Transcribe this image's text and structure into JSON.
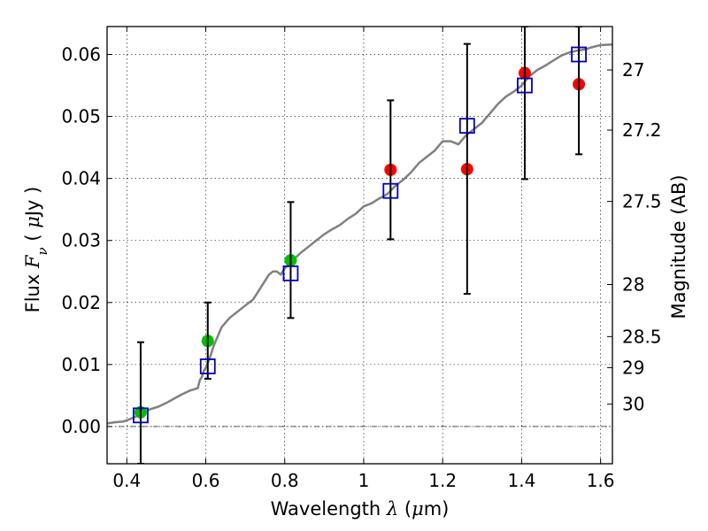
{
  "chart_data": {
    "type": "scatter",
    "xlabel": "Wavelength λ (μm)",
    "ylabel": "Flux F_ν ( μJy )",
    "ylabel_right": "Magnitude (AB)",
    "xlim": [
      0.35,
      1.63
    ],
    "ylim": [
      -0.006,
      0.0645
    ],
    "grid": true,
    "x_ticks": [
      0.4,
      0.6,
      0.8,
      1.0,
      1.2,
      1.4,
      1.6
    ],
    "x_tick_labels": [
      "0.4",
      "0.6",
      "0.8",
      "1",
      "1.2",
      "1.4",
      "1.6"
    ],
    "y_ticks": [
      0.0,
      0.01,
      0.02,
      0.03,
      0.04,
      0.05,
      0.06
    ],
    "y_tick_labels": [
      "0.00",
      "0.01",
      "0.02",
      "0.03",
      "0.04",
      "0.05",
      "0.06"
    ],
    "right_ticks": [
      {
        "label": "27",
        "flux": 0.0575
      },
      {
        "label": "27.2",
        "flux": 0.0478
      },
      {
        "label": "27.5",
        "flux": 0.0363
      },
      {
        "label": "28",
        "flux": 0.0229
      },
      {
        "label": "28.5",
        "flux": 0.0145
      },
      {
        "label": "29",
        "flux": 0.0095
      },
      {
        "label": "30",
        "flux": 0.0036
      }
    ],
    "series": [
      {
        "kind": "line",
        "color": "#808080",
        "x": [
          0.35,
          0.37,
          0.39,
          0.4,
          0.42,
          0.44,
          0.46,
          0.48,
          0.5,
          0.52,
          0.54,
          0.56,
          0.57,
          0.58,
          0.585,
          0.59,
          0.595,
          0.6,
          0.61,
          0.62,
          0.63,
          0.64,
          0.66,
          0.68,
          0.7,
          0.72,
          0.74,
          0.76,
          0.77,
          0.78,
          0.79,
          0.8,
          0.82,
          0.84,
          0.86,
          0.88,
          0.9,
          0.92,
          0.94,
          0.96,
          0.98,
          1.0,
          1.02,
          1.04,
          1.06,
          1.08,
          1.1,
          1.12,
          1.14,
          1.16,
          1.18,
          1.2,
          1.22,
          1.24,
          1.26,
          1.28,
          1.3,
          1.32,
          1.34,
          1.36,
          1.38,
          1.4,
          1.42,
          1.44,
          1.46,
          1.48,
          1.5,
          1.52,
          1.54,
          1.56,
          1.58,
          1.6,
          1.63
        ],
        "y": [
          0.0005,
          0.0007,
          0.0008,
          0.001,
          0.0015,
          0.0022,
          0.0028,
          0.0032,
          0.0038,
          0.0045,
          0.0052,
          0.0058,
          0.006,
          0.0062,
          0.0075,
          0.008,
          0.009,
          0.0095,
          0.011,
          0.013,
          0.0145,
          0.016,
          0.0175,
          0.0185,
          0.0195,
          0.0205,
          0.0225,
          0.0245,
          0.025,
          0.025,
          0.0245,
          0.0255,
          0.0268,
          0.028,
          0.029,
          0.03,
          0.031,
          0.0318,
          0.0325,
          0.0335,
          0.0343,
          0.0355,
          0.036,
          0.0368,
          0.0375,
          0.0388,
          0.0398,
          0.041,
          0.0425,
          0.0435,
          0.0445,
          0.046,
          0.046,
          0.0455,
          0.047,
          0.048,
          0.049,
          0.0505,
          0.052,
          0.0532,
          0.054,
          0.055,
          0.0565,
          0.0575,
          0.0582,
          0.059,
          0.0598,
          0.0603,
          0.0606,
          0.0608,
          0.0612,
          0.0615,
          0.0616
        ]
      },
      {
        "kind": "points",
        "marker": "circle",
        "color": "#00bf00",
        "x": [
          0.435,
          0.605,
          0.815
        ],
        "y": [
          0.0023,
          0.0138,
          0.0268
        ]
      },
      {
        "kind": "points",
        "marker": "circle",
        "color": "#ff0000",
        "x": [
          1.068,
          1.262,
          1.408,
          1.545
        ],
        "y": [
          0.0414,
          0.0415,
          0.057,
          0.0552
        ]
      },
      {
        "kind": "points",
        "marker": "square",
        "color": "#0000bb",
        "x": [
          0.435,
          0.605,
          0.815,
          1.068,
          1.262,
          1.408,
          1.545
        ],
        "y": [
          0.0018,
          0.0097,
          0.0247,
          0.038,
          0.0485,
          0.055,
          0.06
        ]
      },
      {
        "kind": "errorbars",
        "color": "#000000",
        "points": [
          {
            "x": 0.435,
            "low": -0.006,
            "high": 0.0136
          },
          {
            "x": 0.605,
            "low": 0.0077,
            "high": 0.02
          },
          {
            "x": 0.815,
            "low": 0.0175,
            "high": 0.0362
          },
          {
            "x": 1.068,
            "low": 0.0302,
            "high": 0.0526
          },
          {
            "x": 1.262,
            "low": 0.0214,
            "high": 0.0617
          },
          {
            "x": 1.408,
            "low": 0.0399,
            "high": 0.0645
          },
          {
            "x": 1.545,
            "low": 0.0439,
            "high": 0.0645
          }
        ]
      }
    ]
  }
}
